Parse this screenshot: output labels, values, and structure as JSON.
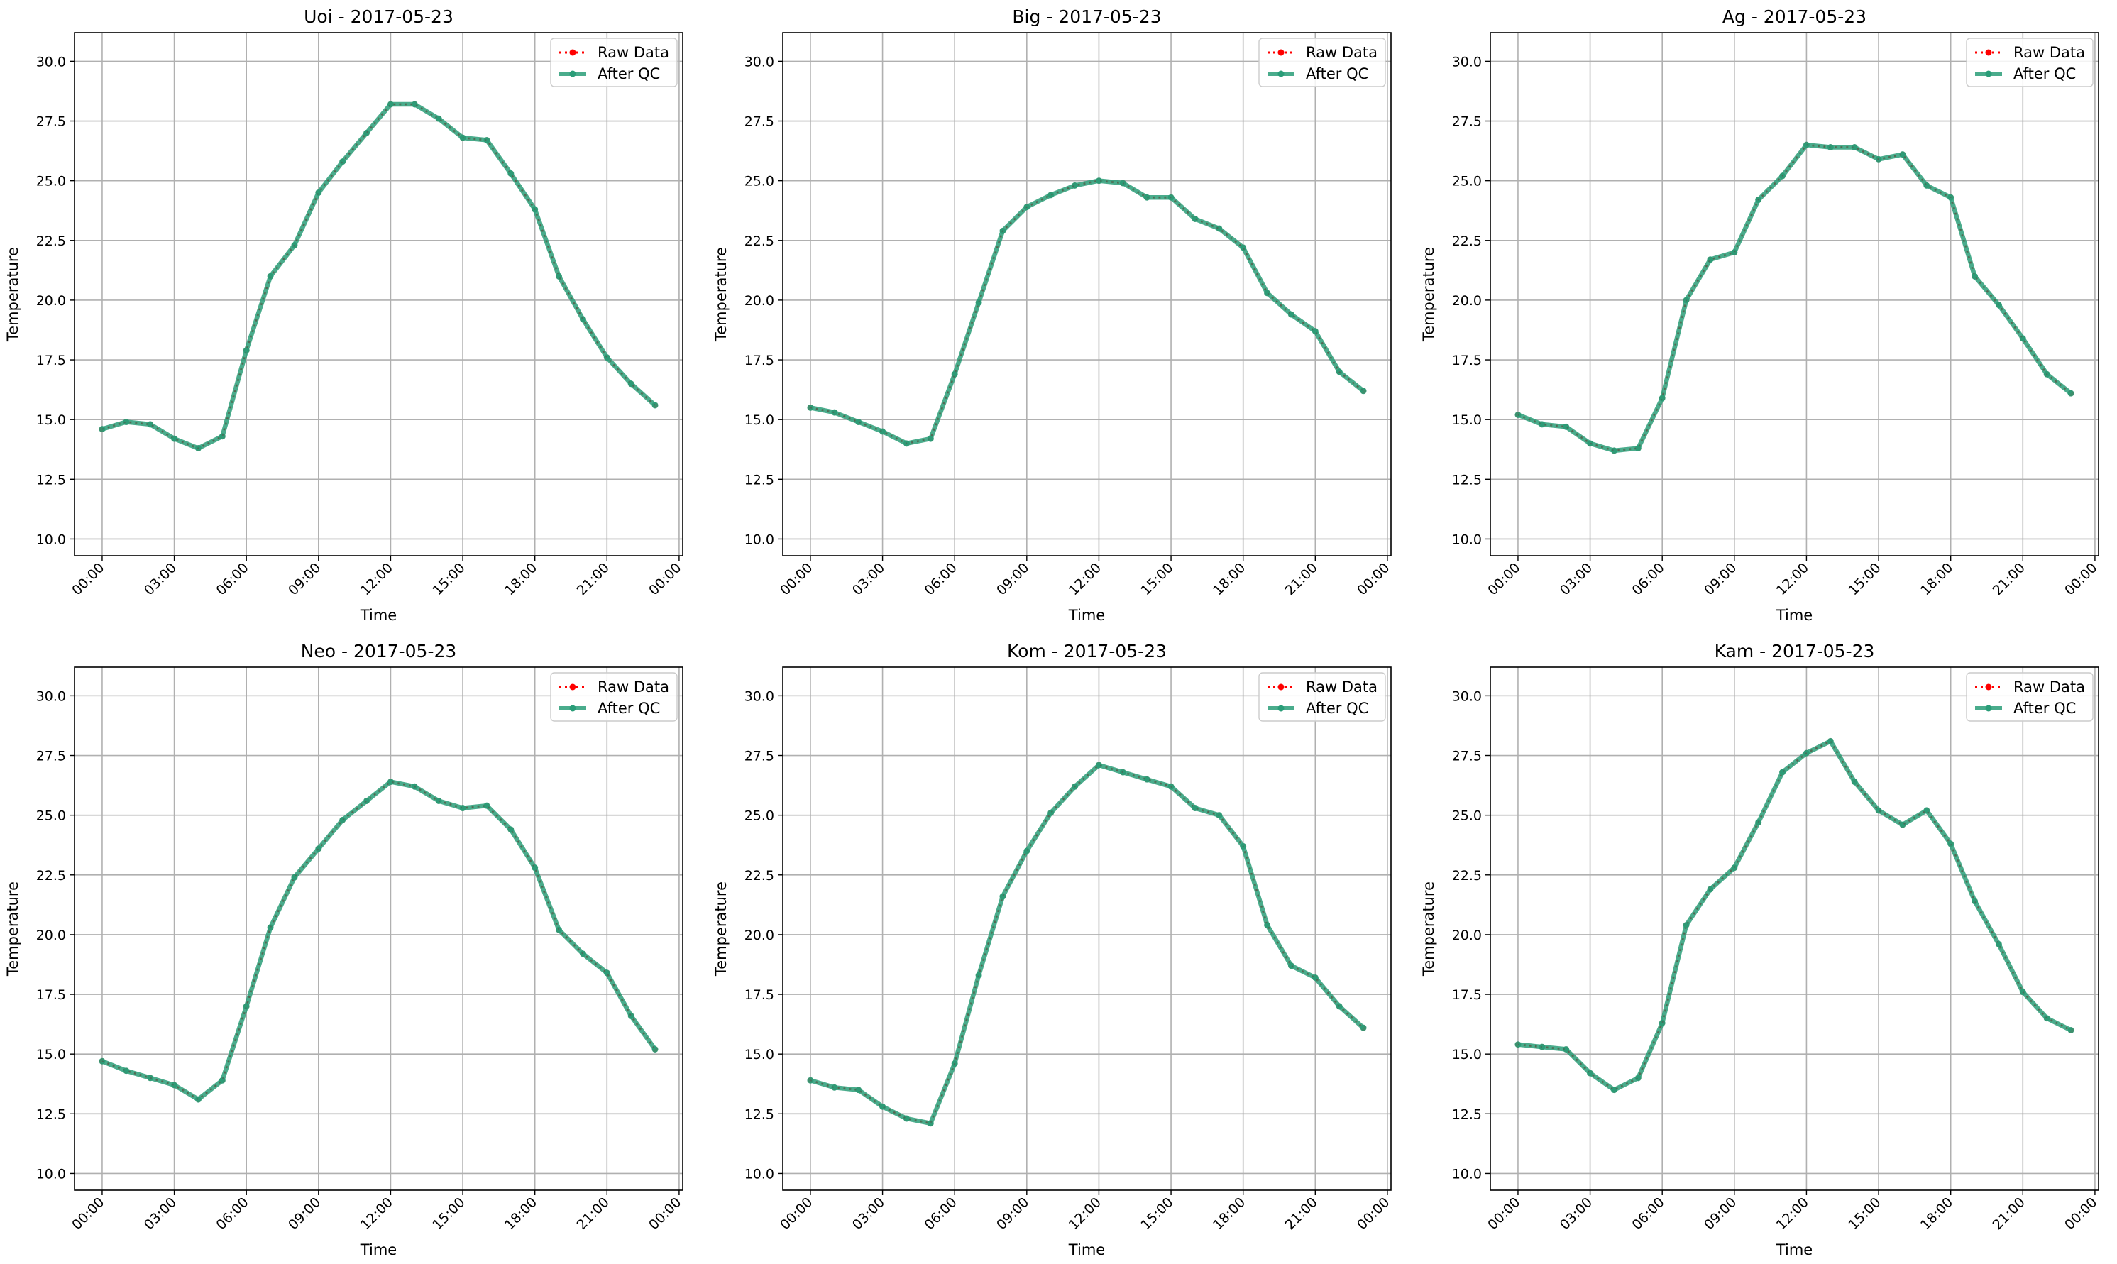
{
  "figure": {
    "xlabel": "Time",
    "ylabel": "Temperature",
    "legend": {
      "raw_label": "Raw Data",
      "qc_label": "After QC",
      "position": "upper right"
    },
    "colors": {
      "raw": "#ff0000",
      "qc": "#2a9d78",
      "grid": "#b0b0b0"
    }
  },
  "chart_data": [
    {
      "type": "line",
      "title": "Uoi - 2017-05-23",
      "xlabel": "Time",
      "ylabel": "Temperature",
      "x": [
        "00:00",
        "01:00",
        "02:00",
        "03:00",
        "04:00",
        "05:00",
        "06:00",
        "07:00",
        "08:00",
        "09:00",
        "10:00",
        "11:00",
        "12:00",
        "13:00",
        "14:00",
        "15:00",
        "16:00",
        "17:00",
        "18:00",
        "19:00",
        "20:00",
        "21:00",
        "22:00",
        "23:00"
      ],
      "series": [
        {
          "name": "Raw Data",
          "values": [
            14.6,
            14.9,
            14.8,
            14.2,
            13.8,
            14.3,
            17.9,
            21.0,
            22.3,
            24.5,
            25.8,
            27.0,
            28.2,
            28.2,
            27.6,
            26.8,
            26.7,
            25.3,
            23.8,
            21.0,
            19.2,
            17.6,
            16.5,
            15.6
          ]
        },
        {
          "name": "After QC",
          "values": [
            14.6,
            14.9,
            14.8,
            14.2,
            13.8,
            14.3,
            17.9,
            21.0,
            22.3,
            24.5,
            25.8,
            27.0,
            28.2,
            28.2,
            27.6,
            26.8,
            26.7,
            25.3,
            23.8,
            21.0,
            19.2,
            17.6,
            16.5,
            15.6
          ]
        }
      ],
      "xticks": [
        "00:00",
        "03:00",
        "06:00",
        "09:00",
        "12:00",
        "15:00",
        "18:00",
        "21:00",
        "00:00"
      ],
      "yticks": [
        "10.0",
        "12.5",
        "15.0",
        "17.5",
        "20.0",
        "22.5",
        "25.0",
        "27.5",
        "30.0"
      ],
      "ylim": [
        9.3,
        31.2
      ],
      "grid": true,
      "legend": "upper right"
    },
    {
      "type": "line",
      "title": "Big - 2017-05-23",
      "xlabel": "Time",
      "ylabel": "Temperature",
      "x": [
        "00:00",
        "01:00",
        "02:00",
        "03:00",
        "04:00",
        "05:00",
        "06:00",
        "07:00",
        "08:00",
        "09:00",
        "10:00",
        "11:00",
        "12:00",
        "13:00",
        "14:00",
        "15:00",
        "16:00",
        "17:00",
        "18:00",
        "19:00",
        "20:00",
        "21:00",
        "22:00",
        "23:00"
      ],
      "series": [
        {
          "name": "Raw Data",
          "values": [
            15.5,
            15.3,
            14.9,
            14.5,
            14.0,
            14.2,
            16.9,
            19.9,
            22.9,
            23.9,
            24.4,
            24.8,
            25.0,
            24.9,
            24.3,
            24.3,
            23.4,
            23.0,
            22.2,
            20.3,
            19.4,
            18.7,
            17.0,
            16.2
          ]
        },
        {
          "name": "After QC",
          "values": [
            15.5,
            15.3,
            14.9,
            14.5,
            14.0,
            14.2,
            16.9,
            19.9,
            22.9,
            23.9,
            24.4,
            24.8,
            25.0,
            24.9,
            24.3,
            24.3,
            23.4,
            23.0,
            22.2,
            20.3,
            19.4,
            18.7,
            17.0,
            16.2
          ]
        }
      ],
      "xticks": [
        "00:00",
        "03:00",
        "06:00",
        "09:00",
        "12:00",
        "15:00",
        "18:00",
        "21:00",
        "00:00"
      ],
      "yticks": [
        "10.0",
        "12.5",
        "15.0",
        "17.5",
        "20.0",
        "22.5",
        "25.0",
        "27.5",
        "30.0"
      ],
      "ylim": [
        9.3,
        31.2
      ],
      "grid": true,
      "legend": "upper right"
    },
    {
      "type": "line",
      "title": "Ag - 2017-05-23",
      "xlabel": "Time",
      "ylabel": "Temperature",
      "x": [
        "00:00",
        "01:00",
        "02:00",
        "03:00",
        "04:00",
        "05:00",
        "06:00",
        "07:00",
        "08:00",
        "09:00",
        "10:00",
        "11:00",
        "12:00",
        "13:00",
        "14:00",
        "15:00",
        "16:00",
        "17:00",
        "18:00",
        "19:00",
        "20:00",
        "21:00",
        "22:00",
        "23:00"
      ],
      "series": [
        {
          "name": "Raw Data",
          "values": [
            15.2,
            14.8,
            14.7,
            14.0,
            13.7,
            13.8,
            15.9,
            20.0,
            21.7,
            22.0,
            24.2,
            25.2,
            26.5,
            26.4,
            26.4,
            25.9,
            26.1,
            24.8,
            24.3,
            21.0,
            19.8,
            18.4,
            16.9,
            16.1
          ]
        },
        {
          "name": "After QC",
          "values": [
            15.2,
            14.8,
            14.7,
            14.0,
            13.7,
            13.8,
            15.9,
            20.0,
            21.7,
            22.0,
            24.2,
            25.2,
            26.5,
            26.4,
            26.4,
            25.9,
            26.1,
            24.8,
            24.3,
            21.0,
            19.8,
            18.4,
            16.9,
            16.1
          ]
        }
      ],
      "xticks": [
        "00:00",
        "03:00",
        "06:00",
        "09:00",
        "12:00",
        "15:00",
        "18:00",
        "21:00",
        "00:00"
      ],
      "yticks": [
        "10.0",
        "12.5",
        "15.0",
        "17.5",
        "20.0",
        "22.5",
        "25.0",
        "27.5",
        "30.0"
      ],
      "ylim": [
        9.3,
        31.2
      ],
      "grid": true,
      "legend": "upper right"
    },
    {
      "type": "line",
      "title": "Neo - 2017-05-23",
      "xlabel": "Time",
      "ylabel": "Temperature",
      "x": [
        "00:00",
        "01:00",
        "02:00",
        "03:00",
        "04:00",
        "05:00",
        "06:00",
        "07:00",
        "08:00",
        "09:00",
        "10:00",
        "11:00",
        "12:00",
        "13:00",
        "14:00",
        "15:00",
        "16:00",
        "17:00",
        "18:00",
        "19:00",
        "20:00",
        "21:00",
        "22:00",
        "23:00"
      ],
      "series": [
        {
          "name": "Raw Data",
          "values": [
            14.7,
            14.3,
            14.0,
            13.7,
            13.1,
            13.9,
            17.0,
            20.3,
            22.4,
            23.6,
            24.8,
            25.6,
            26.4,
            26.2,
            25.6,
            25.3,
            25.4,
            24.4,
            22.8,
            20.2,
            19.2,
            18.4,
            16.6,
            15.2
          ]
        },
        {
          "name": "After QC",
          "values": [
            14.7,
            14.3,
            14.0,
            13.7,
            13.1,
            13.9,
            17.0,
            20.3,
            22.4,
            23.6,
            24.8,
            25.6,
            26.4,
            26.2,
            25.6,
            25.3,
            25.4,
            24.4,
            22.8,
            20.2,
            19.2,
            18.4,
            16.6,
            15.2
          ]
        }
      ],
      "xticks": [
        "00:00",
        "03:00",
        "06:00",
        "09:00",
        "12:00",
        "15:00",
        "18:00",
        "21:00",
        "00:00"
      ],
      "yticks": [
        "10.0",
        "12.5",
        "15.0",
        "17.5",
        "20.0",
        "22.5",
        "25.0",
        "27.5",
        "30.0"
      ],
      "ylim": [
        9.3,
        31.2
      ],
      "grid": true,
      "legend": "upper right"
    },
    {
      "type": "line",
      "title": "Kom - 2017-05-23",
      "xlabel": "Time",
      "ylabel": "Temperature",
      "x": [
        "00:00",
        "01:00",
        "02:00",
        "03:00",
        "04:00",
        "05:00",
        "06:00",
        "07:00",
        "08:00",
        "09:00",
        "10:00",
        "11:00",
        "12:00",
        "13:00",
        "14:00",
        "15:00",
        "16:00",
        "17:00",
        "18:00",
        "19:00",
        "20:00",
        "21:00",
        "22:00",
        "23:00"
      ],
      "series": [
        {
          "name": "Raw Data",
          "values": [
            13.9,
            13.6,
            13.5,
            12.8,
            12.3,
            12.1,
            14.6,
            18.3,
            21.6,
            23.5,
            25.1,
            26.2,
            27.1,
            26.8,
            26.5,
            26.2,
            25.3,
            25.0,
            23.7,
            20.4,
            18.7,
            18.2,
            17.0,
            16.1
          ]
        },
        {
          "name": "After QC",
          "values": [
            13.9,
            13.6,
            13.5,
            12.8,
            12.3,
            12.1,
            14.6,
            18.3,
            21.6,
            23.5,
            25.1,
            26.2,
            27.1,
            26.8,
            26.5,
            26.2,
            25.3,
            25.0,
            23.7,
            20.4,
            18.7,
            18.2,
            17.0,
            16.1
          ]
        }
      ],
      "xticks": [
        "00:00",
        "03:00",
        "06:00",
        "09:00",
        "12:00",
        "15:00",
        "18:00",
        "21:00",
        "00:00"
      ],
      "yticks": [
        "10.0",
        "12.5",
        "15.0",
        "17.5",
        "20.0",
        "22.5",
        "25.0",
        "27.5",
        "30.0"
      ],
      "ylim": [
        9.3,
        31.2
      ],
      "grid": true,
      "legend": "upper right"
    },
    {
      "type": "line",
      "title": "Kam - 2017-05-23",
      "xlabel": "Time",
      "ylabel": "Temperature",
      "x": [
        "00:00",
        "01:00",
        "02:00",
        "03:00",
        "04:00",
        "05:00",
        "06:00",
        "07:00",
        "08:00",
        "09:00",
        "10:00",
        "11:00",
        "12:00",
        "13:00",
        "14:00",
        "15:00",
        "16:00",
        "17:00",
        "18:00",
        "19:00",
        "20:00",
        "21:00",
        "22:00",
        "23:00"
      ],
      "series": [
        {
          "name": "Raw Data",
          "values": [
            15.4,
            15.3,
            15.2,
            14.2,
            13.5,
            14.0,
            16.3,
            20.4,
            21.9,
            22.8,
            24.7,
            26.8,
            27.6,
            28.1,
            26.4,
            25.2,
            24.6,
            25.2,
            23.8,
            21.4,
            19.6,
            17.6,
            16.5,
            16.0
          ]
        },
        {
          "name": "After QC",
          "values": [
            15.4,
            15.3,
            15.2,
            14.2,
            13.5,
            14.0,
            16.3,
            20.4,
            21.9,
            22.8,
            24.7,
            26.8,
            27.6,
            28.1,
            26.4,
            25.2,
            24.6,
            25.2,
            23.8,
            21.4,
            19.6,
            17.6,
            16.5,
            16.0
          ]
        }
      ],
      "xticks": [
        "00:00",
        "03:00",
        "06:00",
        "09:00",
        "12:00",
        "15:00",
        "18:00",
        "21:00",
        "00:00"
      ],
      "yticks": [
        "10.0",
        "12.5",
        "15.0",
        "17.5",
        "20.0",
        "22.5",
        "25.0",
        "27.5",
        "30.0"
      ],
      "ylim": [
        9.3,
        31.2
      ],
      "grid": true,
      "legend": "upper right"
    }
  ]
}
